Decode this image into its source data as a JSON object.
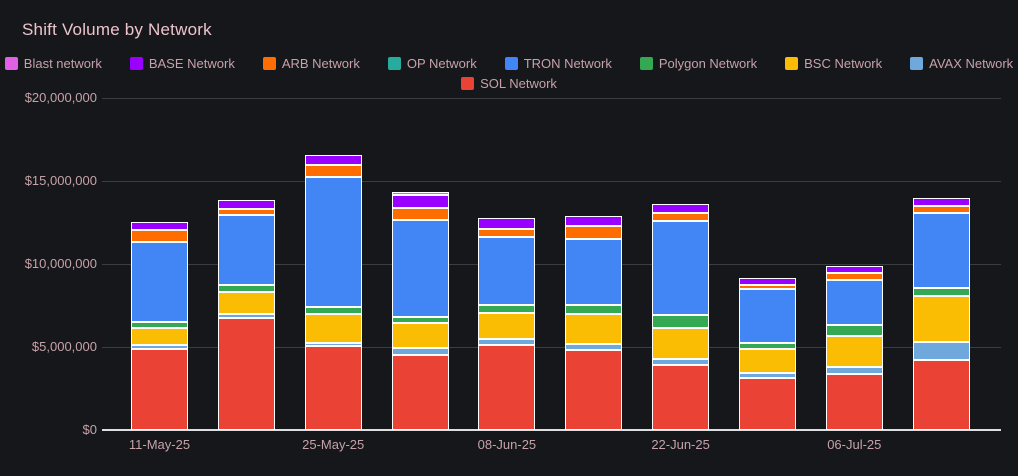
{
  "header": {
    "title": "Shift Volume by Network"
  },
  "colors": {
    "background": "#16171b",
    "title_text": "#edc4cb",
    "label_text": "#c6a2a8",
    "gridline": "#3b3d43",
    "zero_axis_line": "#dcdee2",
    "segment_border": "#ffffff"
  },
  "legend": {
    "items": [
      {
        "label": "Blast network",
        "color": "#e161e6",
        "row": 0
      },
      {
        "label": "BASE Network",
        "color": "#9900ff",
        "row": 0
      },
      {
        "label": "ARB Network",
        "color": "#ff6d01",
        "row": 0
      },
      {
        "label": "OP Network",
        "color": "#26ab9e",
        "row": 0
      },
      {
        "label": "TRON Network",
        "color": "#4285f4",
        "row": 0
      },
      {
        "label": "Polygon Network",
        "color": "#34a853",
        "row": 0
      },
      {
        "label": "BSC Network",
        "color": "#fbbc04",
        "row": 0
      },
      {
        "label": "AVAX Network",
        "color": "#6fa8dc",
        "row": 0
      },
      {
        "label": "SOL Network",
        "color": "#ea4335",
        "row": 1
      }
    ]
  },
  "y_axis": {
    "ticks": [
      {
        "label": "$0",
        "value": 0
      },
      {
        "label": "$5,000,000",
        "value": 5000000
      },
      {
        "label": "$10,000,000",
        "value": 10000000
      },
      {
        "label": "$15,000,000",
        "value": 15000000
      },
      {
        "label": "$20,000,000",
        "value": 20000000
      }
    ]
  },
  "x_axis": {
    "ticks": [
      {
        "label": "11-May-25",
        "bar_index": 0
      },
      {
        "label": "25-May-25",
        "bar_index": 2
      },
      {
        "label": "08-Jun-25",
        "bar_index": 4
      },
      {
        "label": "22-Jun-25",
        "bar_index": 6
      },
      {
        "label": "06-Jul-25",
        "bar_index": 8
      }
    ]
  },
  "chart_data": {
    "type": "bar",
    "stacked": true,
    "title": "Shift Volume by Network",
    "xlabel": "",
    "ylabel": "",
    "ylim": [
      0,
      20000000
    ],
    "y_ticks": [
      0,
      5000000,
      10000000,
      15000000,
      20000000
    ],
    "grid": "horizontal",
    "legend_position": "top-center",
    "num_bars": 10,
    "x_tick_labels": [
      "11-May-25",
      "25-May-25",
      "08-Jun-25",
      "22-Jun-25",
      "06-Jul-25"
    ],
    "x_tick_bar_indices": [
      0,
      2,
      4,
      6,
      8
    ],
    "stack_order_bottom_to_top": [
      "SOL Network",
      "AVAX Network",
      "BSC Network",
      "Polygon Network",
      "OP Network",
      "TRON Network",
      "ARB Network",
      "BASE Network",
      "Blast network"
    ],
    "series": [
      {
        "name": "SOL Network",
        "color": "#ea4335",
        "values": [
          4870000,
          6730000,
          5080000,
          4520000,
          5130000,
          4790000,
          3930000,
          3130000,
          3380000,
          4200000
        ]
      },
      {
        "name": "AVAX Network",
        "color": "#6fa8dc",
        "values": [
          280000,
          250000,
          150000,
          400000,
          350000,
          380000,
          370000,
          300000,
          400000,
          1130000
        ]
      },
      {
        "name": "BSC Network",
        "color": "#fbbc04",
        "values": [
          970000,
          1320000,
          1750000,
          1550000,
          1550000,
          1790000,
          1860000,
          1450000,
          1900000,
          2720000
        ]
      },
      {
        "name": "Polygon Network",
        "color": "#34a853",
        "values": [
          370000,
          450000,
          450000,
          360000,
          500000,
          590000,
          760000,
          350000,
          650000,
          500000
        ]
      },
      {
        "name": "OP Network",
        "color": "#26ab9e",
        "values": [
          0,
          0,
          0,
          0,
          0,
          0,
          0,
          0,
          0,
          0
        ]
      },
      {
        "name": "TRON Network",
        "color": "#4285f4",
        "values": [
          4830000,
          4200000,
          7800000,
          5850000,
          4100000,
          3970000,
          5700000,
          3280000,
          2700000,
          4550000
        ]
      },
      {
        "name": "ARB Network",
        "color": "#ff6d01",
        "values": [
          740000,
          370000,
          720000,
          700000,
          500000,
          740000,
          440000,
          200000,
          400000,
          400000
        ]
      },
      {
        "name": "BASE Network",
        "color": "#9900ff",
        "values": [
          500000,
          550000,
          600000,
          750000,
          650000,
          660000,
          530000,
          450000,
          450000,
          500000
        ]
      },
      {
        "name": "Blast network",
        "color": "#e161e6",
        "values": [
          0,
          0,
          0,
          180000,
          0,
          0,
          0,
          0,
          0,
          0
        ]
      }
    ]
  }
}
